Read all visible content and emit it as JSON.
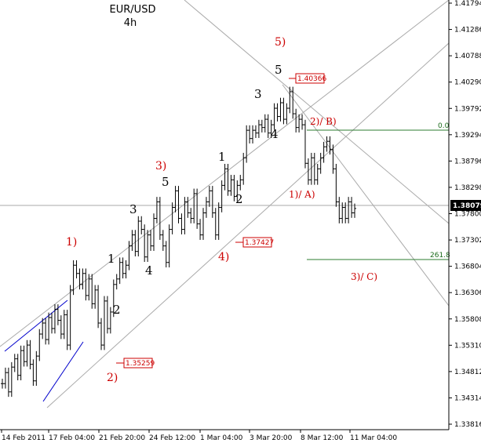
{
  "chart_data": {
    "type": "candlestick",
    "title": "EUR/USD",
    "subtitle": "4h",
    "y_ticks": [
      "1.41794",
      "1.41286",
      "1.40788",
      "1.40290",
      "1.39792",
      "1.39294",
      "1.38796",
      "1.38298",
      "1.37800",
      "1.37302",
      "1.36804",
      "1.36306",
      "1.35808",
      "1.35310",
      "1.34812",
      "1.34314",
      "1.33816"
    ],
    "x_ticks": [
      "14 Feb 2011",
      "17 Feb 04:00",
      "21 Feb 20:00",
      "24 Feb 12:00",
      "1 Mar 04:00",
      "3 Mar 20:00",
      "8 Mar 12:00",
      "11 Mar 04:00"
    ],
    "ylim": [
      1.34078,
      1.41794
    ],
    "last_price": "1.38079",
    "price_markers": [
      {
        "label": "1.40366",
        "value": 1.40366
      },
      {
        "label": "1.37427",
        "value": 1.37427
      },
      {
        "label": "1.35259",
        "value": 1.35259
      }
    ],
    "fib_levels": [
      {
        "label": "0.0",
        "value": 1.3945
      },
      {
        "label": "261.8",
        "value": 1.371
      }
    ],
    "wave_labels": [
      {
        "text": "1)",
        "style": "red"
      },
      {
        "text": "2)",
        "style": "red"
      },
      {
        "text": "3)",
        "style": "red"
      },
      {
        "text": "4)",
        "style": "red"
      },
      {
        "text": "5)",
        "style": "red"
      },
      {
        "text": "1)/ A)",
        "style": "red-small"
      },
      {
        "text": "2)/ B)",
        "style": "red-small"
      },
      {
        "text": "3)/ C)",
        "style": "red-small"
      },
      {
        "text": "1",
        "style": "black"
      },
      {
        "text": "2",
        "style": "black"
      },
      {
        "text": "3",
        "style": "black"
      },
      {
        "text": "4",
        "style": "black"
      },
      {
        "text": "5",
        "style": "black"
      },
      {
        "text": "1",
        "style": "black"
      },
      {
        "text": "2",
        "style": "black"
      },
      {
        "text": "3",
        "style": "black"
      },
      {
        "text": "4",
        "style": "black"
      },
      {
        "text": "5",
        "style": "black"
      }
    ],
    "series": [
      {
        "values": [
          1.349,
          1.351,
          1.3475,
          1.352,
          1.3535,
          1.3505,
          1.355,
          1.353,
          1.356,
          1.3525,
          1.3495,
          1.354,
          1.358,
          1.36,
          1.357,
          1.361,
          1.359,
          1.3625,
          1.3605,
          1.358,
          1.3615,
          1.356,
          1.366,
          1.3705,
          1.369,
          1.367,
          1.369,
          1.365,
          1.368,
          1.3635,
          1.366,
          1.36,
          1.356,
          1.364,
          1.359,
          1.362,
          1.367,
          1.368,
          1.371,
          1.369,
          1.3705,
          1.374,
          1.376,
          1.373,
          1.3785,
          1.377,
          1.372,
          1.376,
          1.374,
          1.379,
          1.382,
          1.376,
          1.374,
          1.371,
          1.377,
          1.381,
          1.384,
          1.379,
          1.377,
          1.382,
          1.38,
          1.379,
          1.3835,
          1.378,
          1.376,
          1.38,
          1.382,
          1.384,
          1.38,
          1.376,
          1.381,
          1.385,
          1.388,
          1.384,
          1.386,
          1.383,
          1.385,
          1.386,
          1.39,
          1.395,
          1.3935,
          1.395,
          1.3945,
          1.396,
          1.3955,
          1.397,
          1.3945,
          1.396,
          1.399,
          1.3975,
          1.4,
          1.397,
          1.399,
          1.402,
          1.398,
          1.3955,
          1.397,
          1.396,
          1.389,
          1.386,
          1.39,
          1.386,
          1.388,
          1.39,
          1.392,
          1.393,
          1.3915,
          1.388,
          1.382,
          1.379,
          1.381,
          1.379,
          1.382,
          1.38,
          1.3808
        ]
      }
    ]
  }
}
